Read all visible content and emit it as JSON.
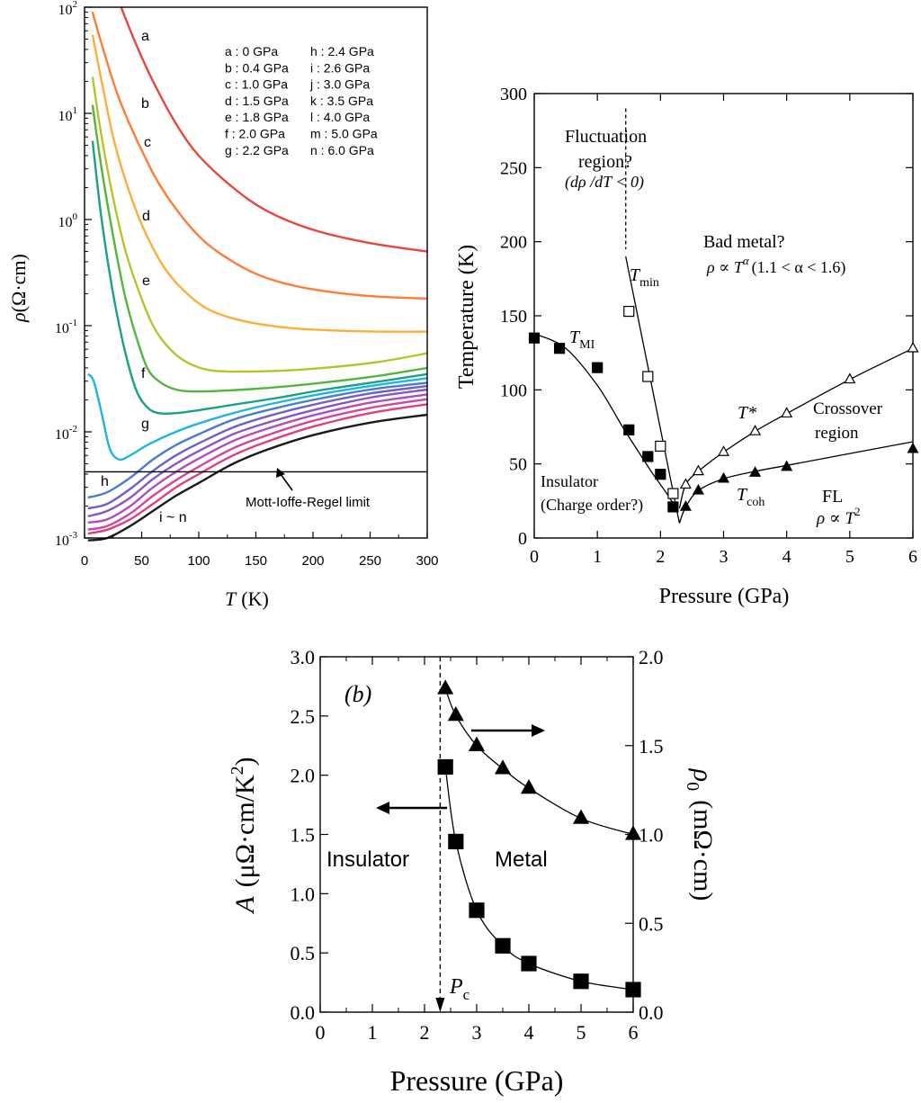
{
  "chart_data": [
    {
      "type": "line",
      "id": "resistivity-vs-temperature",
      "xlabel_var": "T",
      "xlabel_unit": "(K)",
      "ylabel_var": "ρ",
      "ylabel_unit": "(Ω·cm)",
      "xlim": [
        0,
        300
      ],
      "yscale": "log",
      "ylim": [
        0.001,
        100
      ],
      "x_ticks": [
        "0",
        "50",
        "100",
        "150",
        "200",
        "250",
        "300"
      ],
      "y_ticks": [
        {
          "base": "10",
          "exp": "-3"
        },
        {
          "base": "10",
          "exp": "-2"
        },
        {
          "base": "10",
          "exp": "-1"
        },
        {
          "base": "10",
          "exp": "0"
        },
        {
          "base": "10",
          "exp": "1"
        },
        {
          "base": "10",
          "exp": "2"
        }
      ],
      "legend": [
        "a : 0 GPa",
        "b : 0.4 GPa",
        "c : 1.0 GPa",
        "d : 1.5 GPa",
        "e : 1.8 GPa",
        "f : 2.0 GPa",
        "g : 2.2 GPa",
        "h : 2.4 GPa",
        "i : 2.6 GPa",
        "j : 3.0 GPa",
        "k : 3.5 GPa",
        "l : 4.0 GPa",
        "m : 5.0 GPa",
        "n : 6.0 GPa"
      ],
      "curve_labels": [
        "a",
        "b",
        "c",
        "d",
        "e",
        "f",
        "g",
        "h",
        "i ~ n"
      ],
      "annotation": "Mott-Ioffe-Regel limit",
      "mir_limit": 0.0042,
      "series": [
        {
          "name": "a",
          "color": "#e8463c",
          "x": [
            32,
            45,
            60,
            80,
            100,
            130,
            160,
            200,
            250,
            300
          ],
          "y": [
            100,
            45,
            20,
            8,
            4,
            2,
            1.2,
            0.8,
            0.6,
            0.5
          ]
        },
        {
          "name": "b",
          "color": "#ff7b36",
          "x": [
            7,
            15,
            30,
            50,
            70,
            100,
            130,
            160,
            200,
            250,
            300
          ],
          "y": [
            90,
            45,
            14,
            4.5,
            1.8,
            0.7,
            0.4,
            0.28,
            0.22,
            0.19,
            0.18
          ]
        },
        {
          "name": "c",
          "color": "#ffad3a",
          "x": [
            7,
            15,
            25,
            35,
            50,
            70,
            90,
            110,
            140,
            180,
            220,
            260,
            300
          ],
          "y": [
            55,
            20,
            6,
            2.5,
            0.9,
            0.35,
            0.2,
            0.14,
            0.11,
            0.095,
            0.09,
            0.088,
            0.088
          ]
        },
        {
          "name": "d",
          "color": "#b8c22c",
          "x": [
            7,
            15,
            25,
            35,
            45,
            60,
            75,
            90,
            110,
            140,
            180,
            220,
            260,
            300
          ],
          "y": [
            22,
            6,
            1.6,
            0.55,
            0.25,
            0.1,
            0.06,
            0.045,
            0.038,
            0.037,
            0.038,
            0.041,
            0.046,
            0.055
          ]
        },
        {
          "name": "e",
          "color": "#53b53a",
          "x": [
            7,
            15,
            25,
            35,
            45,
            55,
            65,
            80,
            100,
            140,
            180,
            220,
            260,
            300
          ],
          "y": [
            12,
            3,
            0.7,
            0.2,
            0.08,
            0.04,
            0.03,
            0.025,
            0.024,
            0.025,
            0.027,
            0.03,
            0.034,
            0.04
          ]
        },
        {
          "name": "f",
          "color": "#1aa083",
          "x": [
            7,
            15,
            25,
            35,
            45,
            55,
            65,
            80,
            100,
            130,
            170,
            210,
            260,
            300
          ],
          "y": [
            5.5,
            1.0,
            0.2,
            0.06,
            0.025,
            0.017,
            0.015,
            0.015,
            0.016,
            0.018,
            0.021,
            0.025,
            0.03,
            0.035
          ]
        },
        {
          "name": "g",
          "color": "#1eb4e6",
          "x": [
            3,
            8,
            15,
            22,
            30,
            40,
            55,
            75,
            100,
            140,
            180,
            220,
            260,
            300
          ],
          "y": [
            0.035,
            0.03,
            0.015,
            0.007,
            0.0055,
            0.006,
            0.0075,
            0.0095,
            0.012,
            0.016,
            0.02,
            0.024,
            0.028,
            0.032
          ]
        },
        {
          "name": "h",
          "color": "#4a7bd4",
          "x": [
            3,
            20,
            40,
            60,
            80,
            100,
            130,
            160,
            200,
            250,
            300
          ],
          "y": [
            0.0024,
            0.0027,
            0.0037,
            0.0055,
            0.0075,
            0.0095,
            0.013,
            0.016,
            0.02,
            0.025,
            0.029
          ]
        },
        {
          "name": "i",
          "color": "#6a62c8",
          "x": [
            3,
            20,
            40,
            60,
            80,
            100,
            130,
            160,
            200,
            250,
            300
          ],
          "y": [
            0.0019,
            0.0021,
            0.0029,
            0.0043,
            0.006,
            0.0078,
            0.011,
            0.014,
            0.018,
            0.023,
            0.027
          ]
        },
        {
          "name": "j",
          "color": "#8a55c4",
          "x": [
            3,
            20,
            40,
            60,
            80,
            100,
            130,
            160,
            200,
            250,
            300
          ],
          "y": [
            0.0016,
            0.0018,
            0.0024,
            0.0036,
            0.005,
            0.0066,
            0.0095,
            0.0122,
            0.016,
            0.021,
            0.025
          ]
        },
        {
          "name": "k",
          "color": "#b04cbc",
          "x": [
            3,
            20,
            40,
            60,
            80,
            100,
            130,
            160,
            200,
            250,
            300
          ],
          "y": [
            0.0014,
            0.0015,
            0.002,
            0.003,
            0.0042,
            0.0056,
            0.0082,
            0.0107,
            0.0143,
            0.0188,
            0.0225
          ]
        },
        {
          "name": "l",
          "color": "#d0489a",
          "x": [
            3,
            20,
            40,
            60,
            80,
            100,
            130,
            160,
            200,
            250,
            300
          ],
          "y": [
            0.0012,
            0.0013,
            0.0017,
            0.0025,
            0.0035,
            0.0047,
            0.007,
            0.0093,
            0.0127,
            0.0168,
            0.0203
          ]
        },
        {
          "name": "m",
          "color": "#e0407a",
          "x": [
            3,
            20,
            40,
            60,
            80,
            100,
            130,
            160,
            200,
            250,
            300
          ],
          "y": [
            0.0011,
            0.0012,
            0.0015,
            0.0021,
            0.003,
            0.004,
            0.006,
            0.0081,
            0.0112,
            0.015,
            0.0182
          ]
        },
        {
          "name": "n",
          "color": "#1a1a1a",
          "x": [
            3,
            20,
            40,
            60,
            80,
            100,
            130,
            160,
            200,
            250,
            300
          ],
          "y": [
            0.00095,
            0.001,
            0.0013,
            0.0018,
            0.0025,
            0.0033,
            0.005,
            0.0068,
            0.0093,
            0.0122,
            0.0145
          ]
        }
      ]
    },
    {
      "type": "scatter",
      "id": "phase-diagram",
      "xlabel": "Pressure (GPa)",
      "ylabel": "Temperature  (K)",
      "xlim": [
        0,
        6
      ],
      "ylim": [
        0,
        300
      ],
      "x_ticks": [
        "0",
        "1",
        "2",
        "3",
        "4",
        "5",
        "6"
      ],
      "y_ticks": [
        "0",
        "50",
        "100",
        "150",
        "200",
        "250",
        "300"
      ],
      "labels": {
        "fluctuation_1": "Fluctuation",
        "fluctuation_2": "region?",
        "fluctuation_3": "(dρ /dT < 0)",
        "bad_metal": "Bad metal?",
        "bad_metal_law": "ρ ∝ T^α (1.1 < α < 1.6)",
        "bad_metal_rho": "ρ ∝ T",
        "bad_metal_alpha": "α",
        "bad_metal_range": "(1.1 < α < 1.6)",
        "tmin": "T",
        "tmin_sub": "min",
        "tmi": "T",
        "tmi_sub": "MI",
        "tstar": "T*",
        "crossover_1": "Crossover",
        "crossover_2": "region",
        "tcoh": "T",
        "tcoh_sub": "coh",
        "insulator_1": "Insulator",
        "insulator_2": "(Charge order?)",
        "fl_1": "FL",
        "fl_2_rho": "ρ ∝ T",
        "fl_2_exp": "2"
      },
      "series": [
        {
          "name": "T_MI",
          "marker": "filled-square",
          "x": [
            0,
            0.4,
            1.0,
            1.5,
            1.8,
            2.0,
            2.2
          ],
          "y": [
            135,
            128,
            115,
            73,
            55,
            43,
            21
          ]
        },
        {
          "name": "T_min",
          "marker": "open-square",
          "x": [
            1.5,
            1.8,
            2.0,
            2.2
          ],
          "y": [
            153,
            109,
            62,
            30
          ]
        },
        {
          "name": "T*",
          "marker": "open-triangle",
          "x": [
            2.4,
            2.6,
            3.0,
            3.5,
            4.0,
            5.0,
            6.0
          ],
          "y": [
            36,
            45,
            58,
            72,
            84,
            107,
            128
          ]
        },
        {
          "name": "T_coh",
          "marker": "filled-triangle",
          "x": [
            2.4,
            2.6,
            3.0,
            3.5,
            4.0,
            6.0
          ],
          "y": [
            21,
            32,
            40,
            44,
            48,
            60
          ]
        }
      ],
      "fit_curves": [
        {
          "name": "T_MI fit",
          "x": [
            0,
            0.5,
            1.0,
            1.4,
            1.7,
            1.9,
            2.1,
            2.25
          ],
          "y": [
            138,
            128,
            103,
            75,
            55,
            42,
            30,
            20
          ]
        },
        {
          "name": "T_min fit",
          "x": [
            1.45,
            2.3
          ],
          "y": [
            190,
            10
          ]
        },
        {
          "name": "T* fit",
          "x": [
            2.3,
            2.4,
            2.6,
            3.0,
            3.5,
            4.0,
            5.0,
            6.0
          ],
          "y": [
            20,
            36,
            45,
            58,
            72,
            84,
            107,
            128
          ]
        },
        {
          "name": "T_coh fit",
          "x": [
            2.3,
            2.4,
            2.6,
            3.0,
            3.5,
            4.0,
            5.0,
            6.0
          ],
          "y": [
            10,
            21,
            32,
            40,
            45,
            49,
            57,
            65
          ]
        }
      ],
      "dashed_line": {
        "x": 1.45,
        "y": [
          290,
          195
        ]
      }
    },
    {
      "type": "scatter",
      "id": "A-and-rho0-vs-pressure",
      "panel_label": "(b)",
      "xlabel": "Pressure (GPa)",
      "ylabel_left": "A (μΩ·cm/K²)",
      "ylabel_left_var": "A",
      "ylabel_left_unit": "(μΩ·cm/K",
      "ylabel_left_exp": "2",
      "ylabel_left_close": ")",
      "ylabel_right": "ρ₀ (mΩ·cm)",
      "ylabel_right_var": "ρ",
      "ylabel_right_sub": "0",
      "ylabel_right_unit": "(mΩ·cm)",
      "xlim": [
        0,
        6
      ],
      "ylim_left": [
        0,
        3.0
      ],
      "ylim_right": [
        0,
        2.0
      ],
      "x_ticks": [
        "0",
        "1",
        "2",
        "3",
        "4",
        "5",
        "6"
      ],
      "y_ticks_left": [
        "0.0",
        "0.5",
        "1.0",
        "1.5",
        "2.0",
        "2.5",
        "3.0"
      ],
      "y_ticks_right": [
        "0.0",
        "0.5",
        "1.0",
        "1.5",
        "2.0"
      ],
      "region_insulator": "Insulator",
      "region_metal": "Metal",
      "pc_label": "P",
      "pc_sub": "c",
      "pc": 2.3,
      "series": [
        {
          "name": "A",
          "axis": "left",
          "marker": "filled-square",
          "x": [
            2.4,
            2.6,
            3.0,
            3.5,
            4.0,
            5.0,
            6.0
          ],
          "y": [
            2.07,
            1.44,
            0.86,
            0.56,
            0.41,
            0.26,
            0.19
          ]
        },
        {
          "name": "rho0",
          "axis": "right",
          "marker": "filled-triangle",
          "x": [
            2.4,
            2.6,
            3.0,
            3.5,
            4.0,
            5.0,
            6.0
          ],
          "y": [
            1.82,
            1.67,
            1.5,
            1.37,
            1.26,
            1.09,
            1.0
          ]
        }
      ]
    }
  ]
}
